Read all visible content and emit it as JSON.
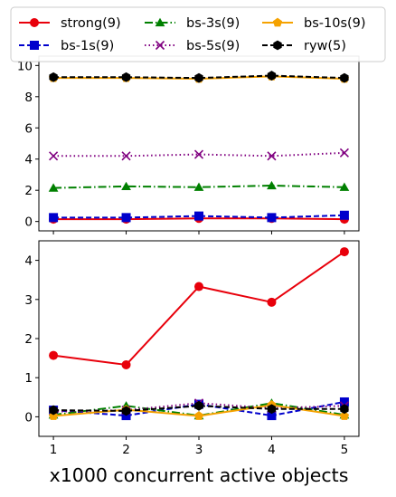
{
  "chart_data": [
    {
      "type": "line",
      "panel": "top",
      "x": [
        1,
        2,
        3,
        4,
        5
      ],
      "ylim": [
        -0.6,
        10.6
      ],
      "yticks": [
        "0",
        "2",
        "4",
        "6",
        "8",
        "10"
      ],
      "grid": false,
      "series": [
        {
          "name": "strong(9)",
          "color": "#e8000b",
          "linestyle": "solid",
          "marker": "circle",
          "values": [
            0.15,
            0.15,
            0.2,
            0.2,
            0.15
          ]
        },
        {
          "name": "bs-1s(9)",
          "color": "#0000cc",
          "linestyle": "dashed",
          "marker": "square",
          "values": [
            0.25,
            0.25,
            0.35,
            0.25,
            0.4
          ]
        },
        {
          "name": "bs-3s(9)",
          "color": "#008000",
          "linestyle": "dashdot",
          "marker": "triangle",
          "values": [
            2.15,
            2.25,
            2.2,
            2.3,
            2.2
          ]
        },
        {
          "name": "bs-5s(9)",
          "color": "#800080",
          "linestyle": "dotted",
          "marker": "x",
          "values": [
            4.2,
            4.2,
            4.3,
            4.2,
            4.4
          ]
        },
        {
          "name": "bs-10s(9)",
          "color": "#f5a200",
          "linestyle": "solid",
          "marker": "pentagon",
          "values": [
            9.2,
            9.2,
            9.15,
            9.3,
            9.15
          ]
        },
        {
          "name": "ryw(5)",
          "color": "#000000",
          "linestyle": "dashed",
          "marker": "hexagon",
          "values": [
            9.25,
            9.25,
            9.2,
            9.35,
            9.2
          ]
        }
      ]
    },
    {
      "type": "line",
      "panel": "bottom",
      "x": [
        1,
        2,
        3,
        4,
        5
      ],
      "xticks": [
        "1",
        "2",
        "3",
        "4",
        "5"
      ],
      "ylim": [
        -0.5,
        4.5
      ],
      "yticks": [
        "0",
        "1",
        "2",
        "3",
        "4"
      ],
      "xlabel": "x1000 concurrent active objects",
      "grid": false,
      "series": [
        {
          "name": "strong(9)",
          "color": "#e8000b",
          "linestyle": "solid",
          "marker": "circle",
          "values": [
            1.57,
            1.33,
            3.33,
            2.93,
            4.22
          ]
        },
        {
          "name": "bs-1s(9)",
          "color": "#0000cc",
          "linestyle": "dashed",
          "marker": "square",
          "values": [
            0.17,
            0.03,
            0.32,
            0.03,
            0.38
          ]
        },
        {
          "name": "bs-3s(9)",
          "color": "#008000",
          "linestyle": "dashdot",
          "marker": "triangle",
          "values": [
            0.05,
            0.28,
            0.03,
            0.35,
            0.05
          ]
        },
        {
          "name": "bs-5s(9)",
          "color": "#800080",
          "linestyle": "dotted",
          "marker": "x",
          "values": [
            0.13,
            0.17,
            0.35,
            0.22,
            0.28
          ]
        },
        {
          "name": "bs-10s(9)",
          "color": "#f5a200",
          "linestyle": "solid",
          "marker": "pentagon",
          "values": [
            0.02,
            0.18,
            0.02,
            0.3,
            0.02
          ]
        },
        {
          "name": "ryw(5)",
          "color": "#000000",
          "linestyle": "dashed",
          "marker": "hexagon",
          "values": [
            0.17,
            0.15,
            0.28,
            0.2,
            0.2
          ]
        }
      ]
    }
  ],
  "legend": {
    "placement": "top",
    "columns": 3,
    "items": [
      {
        "series": "strong(9)"
      },
      {
        "series": "bs-1s(9)"
      },
      {
        "series": "bs-3s(9)"
      },
      {
        "series": "bs-5s(9)"
      },
      {
        "series": "bs-10s(9)"
      },
      {
        "series": "ryw(5)"
      }
    ]
  }
}
